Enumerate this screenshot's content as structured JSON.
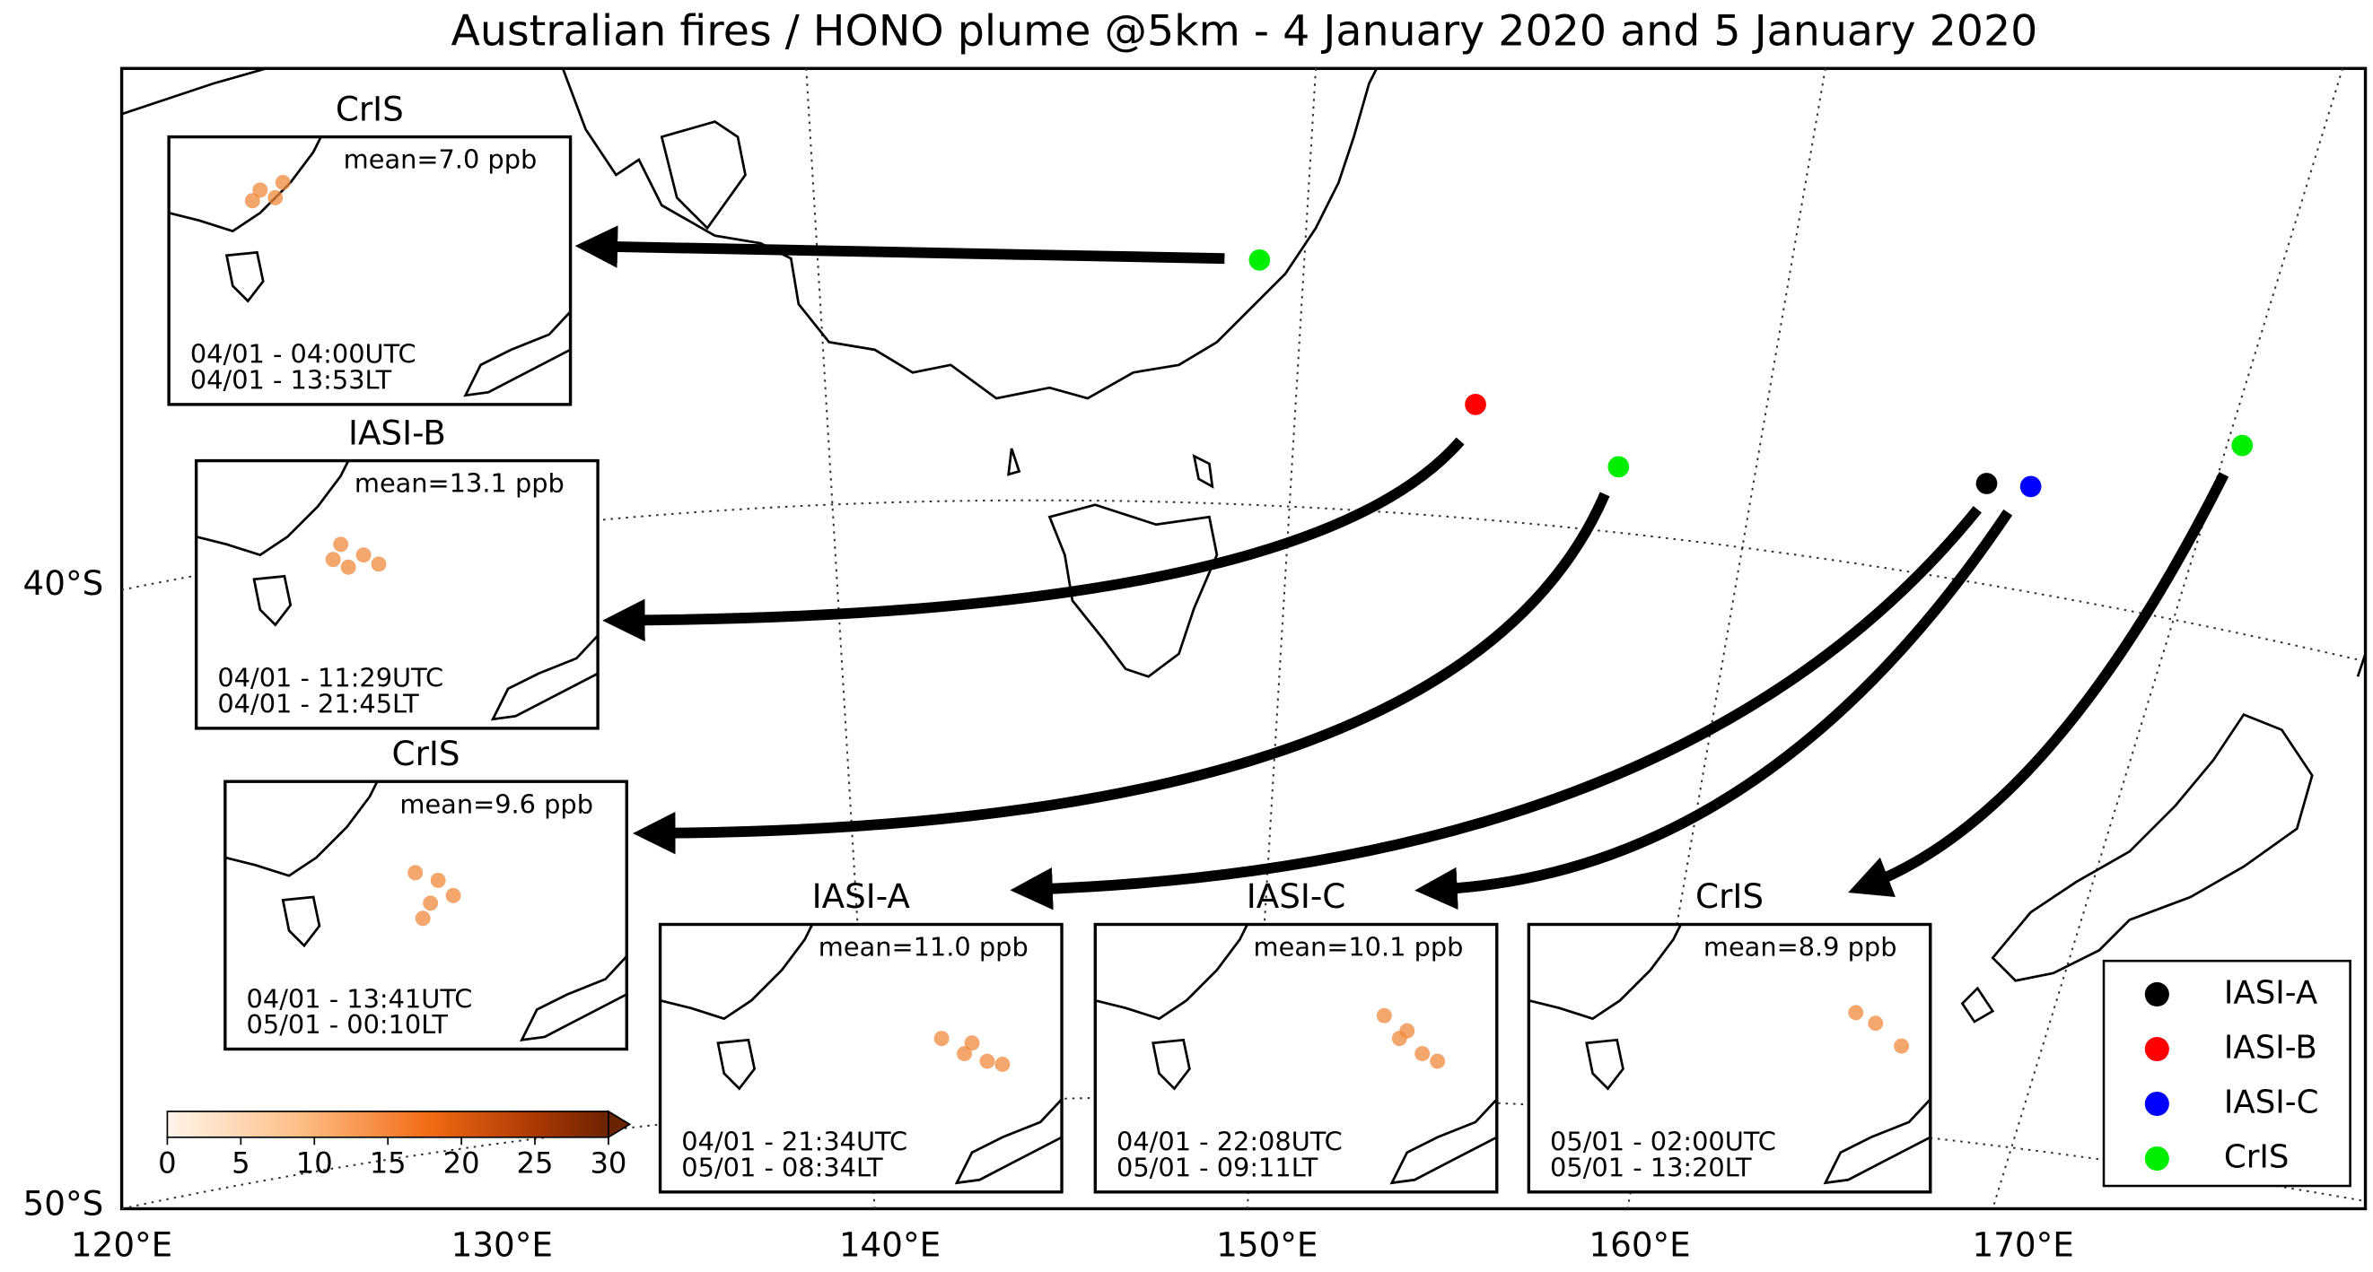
{
  "title": "Australian fires / HONO plume @5km - 4 January 2020 and 5 January 2020",
  "insets": [
    {
      "instrument": "CrIS",
      "mean": "mean=7.0 ppb",
      "utc": "04/01 - 04:00UTC",
      "lt": "04/01 - 13:53LT"
    },
    {
      "instrument": "IASI-B",
      "mean": "mean=13.1 ppb",
      "utc": "04/01 - 11:29UTC",
      "lt": "04/01 - 21:45LT"
    },
    {
      "instrument": "CrIS",
      "mean": "mean=9.6 ppb",
      "utc": "04/01 - 13:41UTC",
      "lt": "05/01 - 00:10LT"
    },
    {
      "instrument": "IASI-A",
      "mean": "mean=11.0 ppb",
      "utc": "04/01 - 21:34UTC",
      "lt": "05/01 - 08:34LT"
    },
    {
      "instrument": "IASI-C",
      "mean": "mean=10.1 ppb",
      "utc": "04/01 - 22:08UTC",
      "lt": "05/01 - 09:11LT"
    },
    {
      "instrument": "CrIS",
      "mean": "mean=8.9 ppb",
      "utc": "05/01 - 02:00UTC",
      "lt": "05/01 - 13:20LT"
    }
  ],
  "legend": [
    {
      "name": "IASI-A",
      "color": "#000000"
    },
    {
      "name": "IASI-B",
      "color": "#ff0000"
    },
    {
      "name": "IASI-C",
      "color": "#0000ff"
    },
    {
      "name": "CrIS",
      "color": "#00ee00"
    }
  ],
  "colorbar": {
    "ticks": [
      0,
      5,
      10,
      15,
      20,
      25,
      30
    ]
  },
  "lon_labels": [
    "120°E",
    "130°E",
    "140°E",
    "150°E",
    "160°E",
    "170°E"
  ],
  "lat_labels": [
    "40°S",
    "50°S"
  ]
}
